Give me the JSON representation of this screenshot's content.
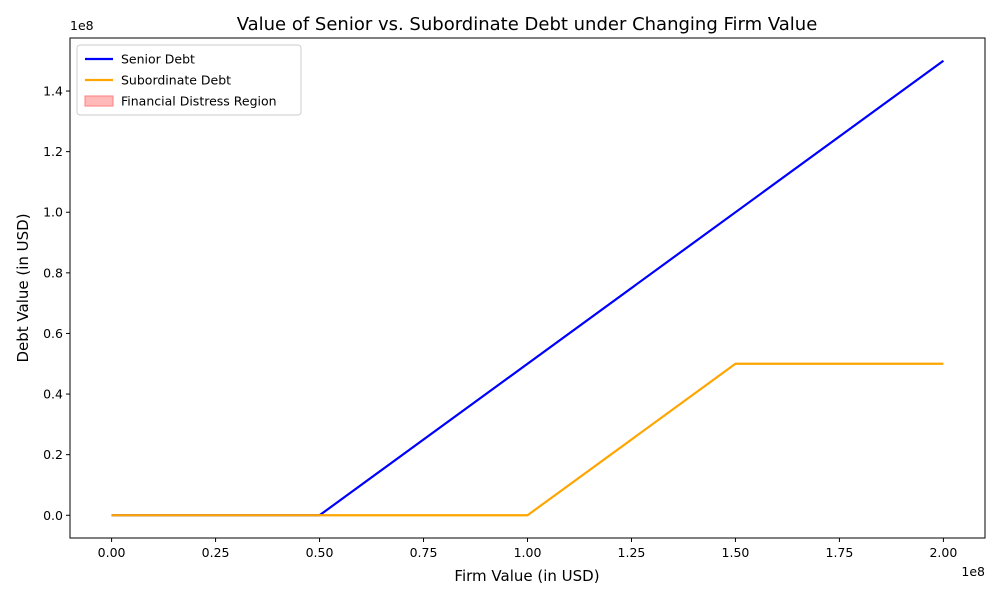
{
  "chart_data": {
    "type": "line",
    "title": "Value of Senior vs. Subordinate Debt under Changing Firm Value",
    "xlabel": "Firm Value (in USD)",
    "ylabel": "Debt Value (in USD)",
    "x_scale_label": "1e8",
    "y_scale_label": "1e8",
    "xlim": [
      -10000000,
      210000000
    ],
    "ylim": [
      -7500000,
      157500000
    ],
    "x_ticks": [
      0,
      25000000,
      50000000,
      75000000,
      100000000,
      125000000,
      150000000,
      175000000,
      200000000
    ],
    "x_tick_labels": [
      "0.00",
      "0.25",
      "0.50",
      "0.75",
      "1.00",
      "1.25",
      "1.50",
      "1.75",
      "2.00"
    ],
    "y_ticks": [
      0,
      20000000,
      40000000,
      60000000,
      80000000,
      100000000,
      120000000,
      140000000
    ],
    "y_tick_labels": [
      "0.0",
      "0.2",
      "0.4",
      "0.6",
      "0.8",
      "1.0",
      "1.2",
      "1.4"
    ],
    "grid": false,
    "legend_position": "top-left",
    "series": [
      {
        "name": "Senior Debt",
        "color": "#0000ff",
        "x": [
          0,
          50000000,
          200000000
        ],
        "y": [
          0,
          0,
          150000000
        ]
      },
      {
        "name": "Subordinate Debt",
        "color": "#ffa500",
        "x": [
          0,
          100000000,
          150000000,
          200000000
        ],
        "y": [
          0,
          0,
          50000000,
          50000000
        ]
      }
    ],
    "shaded_regions": [
      {
        "name": "Financial Distress Region",
        "color": "#ff7f7f",
        "x": [],
        "y": []
      }
    ]
  }
}
